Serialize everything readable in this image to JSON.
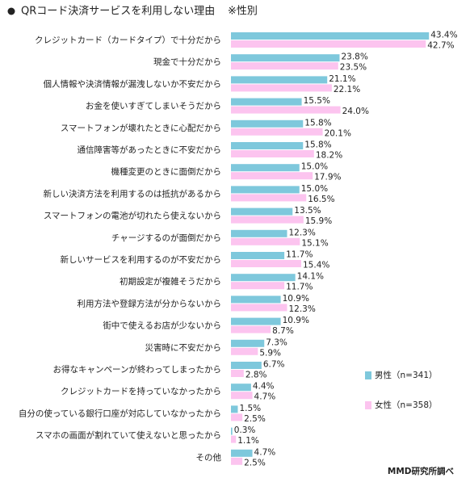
{
  "chart_data": {
    "type": "bar",
    "orientation": "horizontal",
    "title": "QRコード決済サービスを利用しない理由",
    "subtitle": "※性別",
    "source": "MMD研究所調べ",
    "categories": [
      "クレジットカード（カードタイプ）で十分だから",
      "現金で十分だから",
      "個人情報や決済情報が漏洩しないか不安だから",
      "お金を使いすぎてしまいそうだから",
      "スマートフォンが壊れたときに心配だから",
      "通信障害等があったときに不安だから",
      "機種変更のときに面倒だから",
      "新しい決済方法を利用するのは抵抗があるから",
      "スマートフォンの電池が切れたら使えないから",
      "チャージするのが面倒だから",
      "新しいサービスを利用するのが不安だから",
      "初期設定が複雑そうだから",
      "利用方法や登録方法が分からないから",
      "街中で使えるお店が少ないから",
      "災害時に不安だから",
      "お得なキャンペーンが終わってしまったから",
      "クレジットカードを持っていなかったから",
      "自分の使っている銀行口座が対応していなかったから",
      "スマホの画面が割れていて使えないと思ったから",
      "その他"
    ],
    "series": [
      {
        "name": "男性（n=341）",
        "color": "#7ec8dc",
        "values": [
          43.4,
          23.8,
          21.1,
          15.5,
          15.8,
          15.8,
          15.0,
          15.0,
          13.5,
          12.3,
          11.7,
          14.1,
          10.9,
          10.9,
          7.3,
          6.7,
          4.4,
          1.5,
          0.3,
          4.7
        ],
        "value_labels": [
          "43.4%",
          "23.8%",
          "21.1%",
          "15.5%",
          "15.8%",
          "15.8%",
          "15.0%",
          "15.0%",
          "13.5%",
          "12.3%",
          "11.7%",
          "14.1%",
          "10.9%",
          "10.9%",
          "7.3%",
          "6.7%",
          "4.4%",
          "1.5%",
          "0.3%",
          "4.7%"
        ]
      },
      {
        "name": "女性（n=358）",
        "color": "#fcc4ef",
        "values": [
          42.7,
          23.5,
          22.1,
          24.0,
          20.1,
          18.2,
          17.9,
          16.5,
          15.9,
          15.1,
          15.4,
          11.7,
          12.3,
          8.7,
          5.9,
          2.8,
          4.7,
          2.5,
          1.1,
          2.5
        ],
        "value_labels": [
          "42.7%",
          "23.5%",
          "22.1%",
          "24.0%",
          "20.1%",
          "18.2%",
          "17.9%",
          "16.5%",
          "15.9%",
          "15.1%",
          "15.4%",
          "11.7%",
          "12.3%",
          "8.7%",
          "5.9%",
          "2.8%",
          "4.7%",
          "2.5%",
          "1.1%",
          "2.5%"
        ]
      }
    ]
  }
}
